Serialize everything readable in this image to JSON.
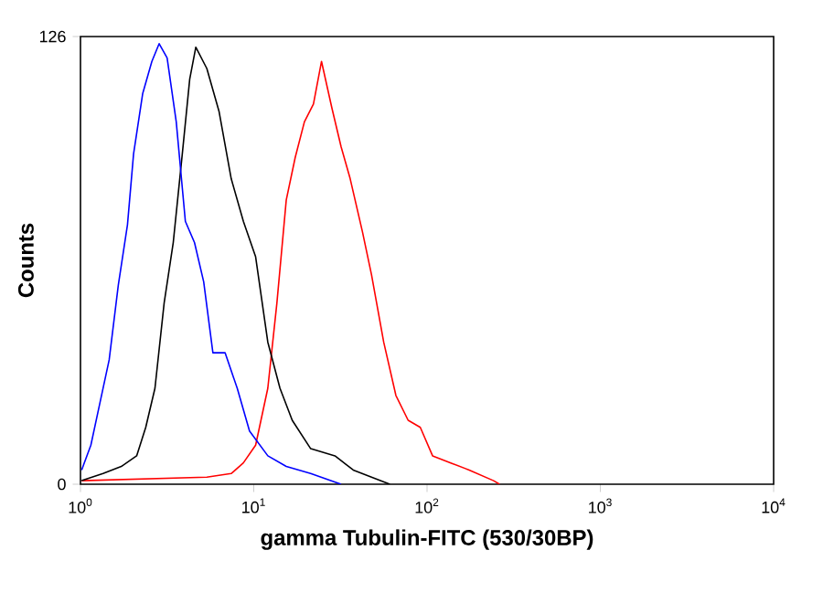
{
  "chart_data": {
    "type": "line",
    "xlabel": "gamma Tubulin-FITC (530/30BP)",
    "ylabel": "Counts",
    "log": "x",
    "grid": false,
    "marker": "none",
    "line_style": "solid",
    "xlim": [
      1,
      10000
    ],
    "ylim": [
      0,
      126
    ],
    "xticks": [
      {
        "value": 1,
        "label": "10$^{0}$"
      },
      {
        "value": 10,
        "label": "10$^{1}$"
      },
      {
        "value": 100,
        "label": "10$^{2}$"
      },
      {
        "value": 1000,
        "label": "10$^{3}$"
      },
      {
        "value": 10000,
        "label": "10$^{4}$"
      }
    ],
    "yticks": [
      0,
      126
    ],
    "series": [
      {
        "color": "#ff0000",
        "x": [
          1.016,
          5.36,
          7.41,
          8.71,
          10.25,
          12.05,
          13.6,
          15.4,
          17.35,
          19.6,
          22.1,
          24.6,
          28.2,
          31.9,
          36,
          42.4,
          47.8,
          56.2,
          66.1,
          77.8,
          91.4,
          107.6,
          137,
          175,
          242,
          262
        ],
        "values": [
          1,
          2,
          3,
          6,
          11,
          27,
          51,
          80,
          92,
          102,
          107,
          119,
          106,
          95,
          86,
          71,
          59,
          40,
          25,
          18,
          16,
          8,
          6,
          4,
          1,
          0
        ]
      },
      {
        "color": "#000000",
        "x": [
          1.016,
          1.35,
          1.72,
          2.11,
          2.38,
          2.69,
          3.04,
          3.43,
          3.87,
          4.27,
          4.63,
          5.36,
          6.3,
          7.41,
          8.71,
          10.25,
          12.05,
          14.17,
          16.67,
          21.3,
          29.4,
          37.5,
          47.8,
          61
        ],
        "values": [
          1,
          3,
          5,
          8,
          16,
          27,
          51,
          68,
          93,
          114,
          123,
          117,
          105,
          86,
          74,
          64,
          40,
          27,
          18,
          10,
          8,
          4,
          2,
          0
        ]
      },
      {
        "color": "#0000ff",
        "x": [
          1.016,
          1.148,
          1.296,
          1.464,
          1.653,
          1.867,
          2.025,
          2.287,
          2.582,
          2.845,
          3.162,
          3.57,
          4.03,
          4.55,
          5.14,
          5.81,
          6.83,
          8.03,
          9.45,
          12.05,
          15.4,
          21.3,
          31.9
        ],
        "values": [
          4,
          11,
          23,
          35,
          56,
          73,
          93,
          110,
          119,
          124,
          120,
          102,
          74,
          68,
          57,
          37,
          37,
          27,
          15,
          8,
          5,
          3,
          0
        ]
      }
    ]
  }
}
